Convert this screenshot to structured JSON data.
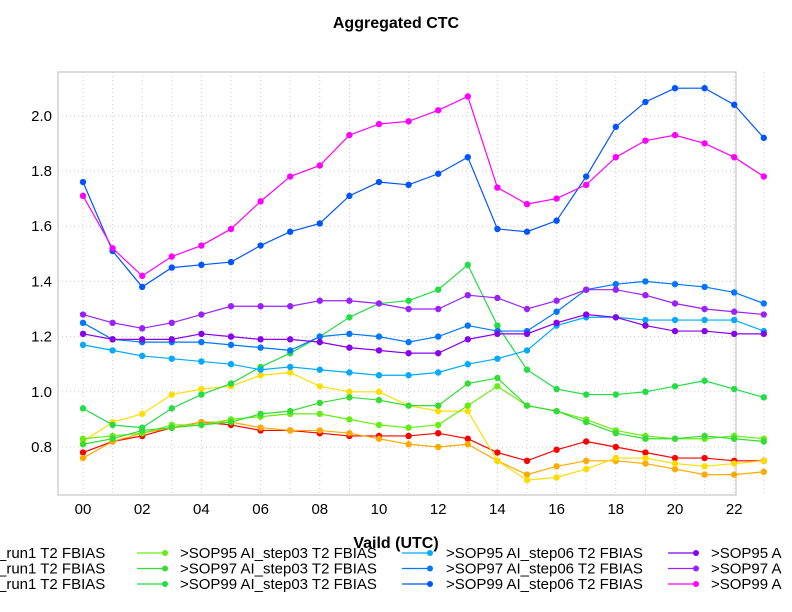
{
  "chart_data": {
    "type": "line",
    "title": "Aggregated CTC",
    "xlabel": "Vaild (UTC)",
    "ylabel": "",
    "x": [
      0,
      1,
      2,
      3,
      4,
      5,
      6,
      7,
      8,
      9,
      10,
      11,
      12,
      13,
      14,
      15,
      16,
      17,
      18,
      19,
      20,
      21,
      22,
      23
    ],
    "xticks": [
      "00",
      "02",
      "04",
      "06",
      "08",
      "10",
      "12",
      "14",
      "16",
      "18",
      "20",
      "22"
    ],
    "xtick_values": [
      0,
      2,
      4,
      6,
      8,
      10,
      12,
      14,
      16,
      18,
      20,
      22
    ],
    "yticks": [
      "0.8",
      "1.0",
      "1.2",
      "1.4",
      "1.6",
      "1.8",
      "2.0"
    ],
    "ytick_values": [
      0.8,
      1.0,
      1.2,
      1.4,
      1.6,
      1.8,
      2.0
    ],
    "xlim": [
      -1,
      24
    ],
    "ylim": [
      0.6,
      2.16
    ],
    "grid": true,
    "legend_placement": "bottom",
    "series": [
      {
        "name": "_run1 T2 FBIAS",
        "color": "#ff0000",
        "values": [
          0.78,
          0.82,
          0.84,
          0.87,
          0.89,
          0.88,
          0.86,
          0.86,
          0.85,
          0.84,
          0.84,
          0.84,
          0.85,
          0.83,
          0.78,
          0.75,
          0.79,
          0.82,
          0.8,
          0.78,
          0.76,
          0.76,
          0.75,
          0.75
        ]
      },
      {
        "name": "_run1 T2 FBIAS",
        "color": "#ffaa00",
        "values": [
          0.76,
          0.82,
          0.85,
          0.87,
          0.89,
          0.89,
          0.87,
          0.86,
          0.86,
          0.85,
          0.83,
          0.81,
          0.8,
          0.81,
          0.75,
          0.7,
          0.73,
          0.75,
          0.75,
          0.74,
          0.72,
          0.7,
          0.7,
          0.71
        ]
      },
      {
        "name": "_run1 T2 FBIAS",
        "color": "#ffdd00",
        "values": [
          0.82,
          0.89,
          0.92,
          0.99,
          1.01,
          1.02,
          1.06,
          1.07,
          1.02,
          1.0,
          1.0,
          0.95,
          0.93,
          0.93,
          0.75,
          0.68,
          0.69,
          0.72,
          0.76,
          0.76,
          0.74,
          0.73,
          0.74,
          0.75
        ]
      },
      {
        "name": ">SOP95 AI_step03 T2 FBIAS",
        "color": "#66ee11",
        "values": [
          0.83,
          0.84,
          0.85,
          0.88,
          0.88,
          0.9,
          0.91,
          0.92,
          0.92,
          0.9,
          0.88,
          0.87,
          0.88,
          0.95,
          1.02,
          0.95,
          0.93,
          0.9,
          0.86,
          0.84,
          0.83,
          0.83,
          0.84,
          0.83
        ]
      },
      {
        "name": ">SOP97 AI_step03 T2 FBIAS",
        "color": "#33dd33",
        "values": [
          0.81,
          0.83,
          0.86,
          0.87,
          0.88,
          0.89,
          0.92,
          0.93,
          0.96,
          0.98,
          0.97,
          0.95,
          0.95,
          1.03,
          1.05,
          0.95,
          0.93,
          0.89,
          0.85,
          0.83,
          0.83,
          0.84,
          0.83,
          0.82
        ]
      },
      {
        "name": ">SOP99 AI_step03 T2 FBIAS",
        "color": "#22dd44",
        "values": [
          0.94,
          0.88,
          0.87,
          0.94,
          0.99,
          1.03,
          1.09,
          1.14,
          1.2,
          1.27,
          1.32,
          1.33,
          1.37,
          1.46,
          1.24,
          1.08,
          1.01,
          0.99,
          0.99,
          1.0,
          1.02,
          1.04,
          1.01,
          0.98
        ]
      },
      {
        "name": ">SOP95 AI_step06 T2 FBIAS",
        "color": "#00aaff",
        "values": [
          1.17,
          1.15,
          1.13,
          1.12,
          1.11,
          1.1,
          1.08,
          1.09,
          1.08,
          1.07,
          1.06,
          1.06,
          1.07,
          1.1,
          1.12,
          1.15,
          1.24,
          1.27,
          1.27,
          1.26,
          1.26,
          1.26,
          1.26,
          1.22
        ]
      },
      {
        "name": ">SOP97 AI_step06 T2 FBIAS",
        "color": "#0077ff",
        "values": [
          1.25,
          1.19,
          1.18,
          1.18,
          1.18,
          1.17,
          1.16,
          1.15,
          1.2,
          1.21,
          1.2,
          1.18,
          1.2,
          1.24,
          1.22,
          1.22,
          1.29,
          1.37,
          1.39,
          1.4,
          1.39,
          1.38,
          1.36,
          1.32
        ]
      },
      {
        "name": ">SOP99 AI_step06 T2 FBIAS",
        "color": "#0055ff",
        "values": [
          1.76,
          1.51,
          1.38,
          1.45,
          1.46,
          1.47,
          1.53,
          1.58,
          1.61,
          1.71,
          1.76,
          1.75,
          1.79,
          1.85,
          1.59,
          1.58,
          1.62,
          1.78,
          1.96,
          2.05,
          2.1,
          2.1,
          2.04,
          1.92
        ]
      },
      {
        "name": ">SOP95 A",
        "color": "#8800ee",
        "values": [
          1.21,
          1.19,
          1.19,
          1.19,
          1.21,
          1.2,
          1.19,
          1.19,
          1.18,
          1.16,
          1.15,
          1.14,
          1.14,
          1.19,
          1.21,
          1.21,
          1.25,
          1.28,
          1.27,
          1.24,
          1.22,
          1.22,
          1.21,
          1.21
        ]
      },
      {
        "name": ">SOP97 A",
        "color": "#9922ff",
        "values": [
          1.28,
          1.25,
          1.23,
          1.25,
          1.28,
          1.31,
          1.31,
          1.31,
          1.33,
          1.33,
          1.32,
          1.3,
          1.3,
          1.35,
          1.34,
          1.3,
          1.33,
          1.37,
          1.37,
          1.35,
          1.32,
          1.3,
          1.29,
          1.28
        ]
      },
      {
        "name": ">SOP99 A",
        "color": "#ff00ff",
        "values": [
          1.71,
          1.52,
          1.42,
          1.49,
          1.53,
          1.59,
          1.69,
          1.78,
          1.82,
          1.93,
          1.97,
          1.98,
          2.02,
          2.07,
          1.74,
          1.68,
          1.7,
          1.75,
          1.85,
          1.91,
          1.93,
          1.9,
          1.85,
          1.78
        ]
      }
    ]
  }
}
